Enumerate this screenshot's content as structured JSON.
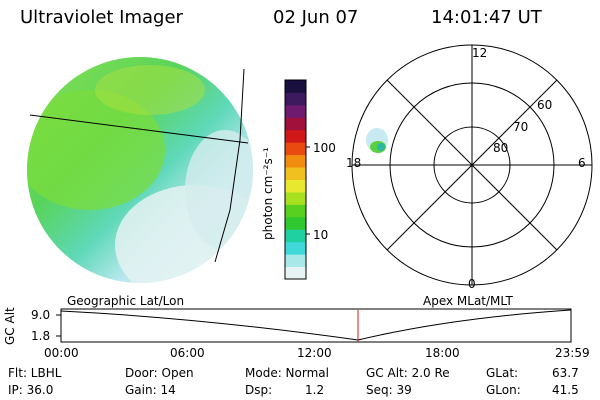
{
  "header": {
    "title": "Ultraviolet Imager",
    "date": "02 Jun 07",
    "time": "14:01:47 UT"
  },
  "colorbar": {
    "label": "photon cm⁻²s⁻¹",
    "ticks": [
      "100",
      "10"
    ],
    "colors": [
      "#1a1040",
      "#3d1a5e",
      "#6e1a6e",
      "#a0103a",
      "#d01818",
      "#e84a10",
      "#f08c10",
      "#f0c020",
      "#e8e830",
      "#a8e020",
      "#58d020",
      "#30c830",
      "#20d0a0",
      "#40d8d8",
      "#a8e8e8",
      "#e8f4f4"
    ]
  },
  "polar": {
    "mlt_labels": [
      "12",
      "18",
      "6",
      "0"
    ],
    "mlat_labels": [
      "60",
      "70",
      "80"
    ]
  },
  "left_caption": "Geographic Lat/Lon",
  "right_caption": "Apex MLat/MLT",
  "gc_alt": {
    "axis_label": "GC Alt",
    "y_ticks": [
      "9.0",
      "1.8"
    ],
    "x_ticks": [
      "00:00",
      "06:00",
      "12:00",
      "18:00",
      "23:59"
    ]
  },
  "info": {
    "flt": "Flt: LBHL",
    "ip": "IP: 36.0",
    "door": "Door: Open",
    "gain": "Gain: 14",
    "mode": "Mode: Normal",
    "dsp_label": "Dsp:",
    "dsp_value": "1.2",
    "gcalt": "GC Alt: 2.0 Re",
    "seq": "Seq: 39",
    "glat_label": "GLat:",
    "glat_value": "63.7",
    "glon_label": "GLon:",
    "glon_value": "41.5"
  }
}
